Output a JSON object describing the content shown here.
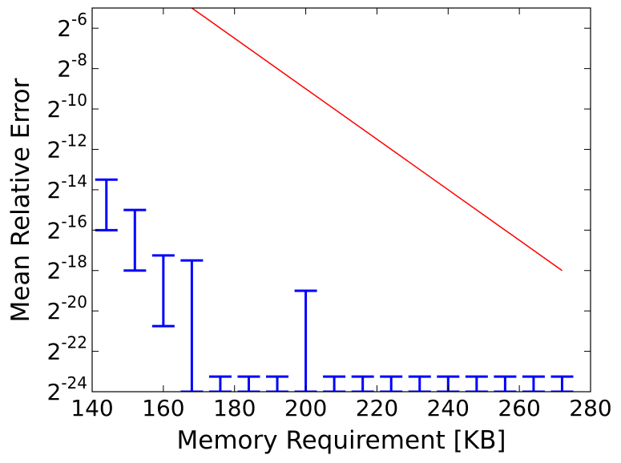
{
  "chart_data": {
    "type": "errorbar",
    "xlabel": "Memory Requirement [KB]",
    "ylabel": "Mean Relative Error",
    "xlim": [
      140,
      280
    ],
    "xticks": [
      140,
      160,
      180,
      200,
      220,
      240,
      260,
      280
    ],
    "ylim": [
      5.960464477539063e-08,
      0.03125
    ],
    "yscale": "log",
    "log_base": 2,
    "yticks": [
      {
        "value": 5.960464477539063e-08,
        "label": "2^-24"
      },
      {
        "value": 2.384185791015625e-07,
        "label": "2^-22"
      },
      {
        "value": 9.5367431640625e-07,
        "label": "2^-20"
      },
      {
        "value": 3.814697265625e-06,
        "label": "2^-18"
      },
      {
        "value": 1.52587890625e-05,
        "label": "2^-16"
      },
      {
        "value": 6.103515625e-05,
        "label": "2^-14"
      },
      {
        "value": 0.000244140625,
        "label": "2^-12"
      },
      {
        "value": 0.0009765625,
        "label": "2^-10"
      },
      {
        "value": 0.00390625,
        "label": "2^-8"
      },
      {
        "value": 0.015625,
        "label": "2^-6"
      }
    ],
    "errorbars": {
      "color": "#0000ff",
      "x": [
        144,
        152,
        160,
        168,
        176,
        184,
        192,
        200,
        208,
        216,
        224,
        232,
        240,
        248,
        256,
        264,
        272
      ],
      "high": [
        8.632e-05,
        3.0518e-05,
        6.415e-06,
        5.394e-06,
        1.0024e-07,
        1.0024e-07,
        1.0024e-07,
        1.9073e-06,
        1.0024e-07,
        1.0024e-07,
        1.0024e-07,
        1.0024e-07,
        1.0024e-07,
        1.0024e-07,
        1.0024e-07,
        1.0024e-07,
        1.0024e-07
      ],
      "low": [
        1.5259e-05,
        3.815e-06,
        5.671e-07,
        5.96e-08,
        5.96e-08,
        5.96e-08,
        5.96e-08,
        5.96e-08,
        5.96e-08,
        5.96e-08,
        5.96e-08,
        5.96e-08,
        5.96e-08,
        5.96e-08,
        5.96e-08,
        5.96e-08,
        5.96e-08
      ]
    },
    "line": {
      "color": "#ff0000",
      "x": [
        168,
        272
      ],
      "values": [
        0.03125,
        3.814697265625e-06
      ]
    }
  }
}
